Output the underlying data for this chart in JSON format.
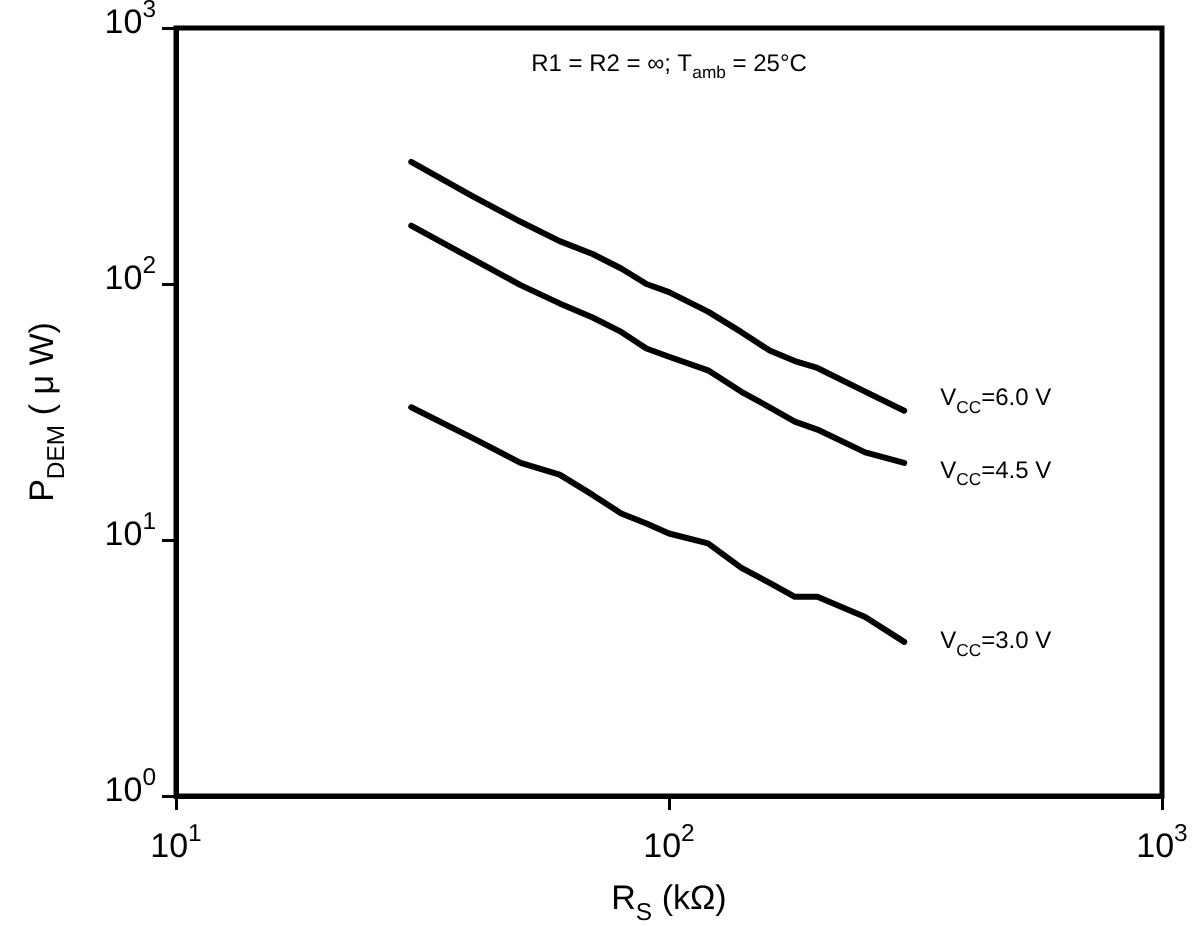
{
  "chart_data": {
    "type": "line",
    "xlabel": "R$_{S}$ (kΩ)",
    "ylabel": "P$_{DEM}$ ( μ W)",
    "annotations": [
      "R1 = R2 = ∞; T$_{amb}$ = 25°C"
    ],
    "x": [
      30,
      40,
      50,
      60,
      70,
      80,
      90,
      100,
      120,
      140,
      160,
      180,
      200,
      250,
      300
    ],
    "series": [
      {
        "name": "V$_{CC}$=6.0 V",
        "color": "#000000",
        "values": [
          300,
          220,
          175,
          147,
          131,
          115,
          100,
          93,
          78,
          65,
          55,
          50,
          47,
          38,
          32
        ]
      },
      {
        "name": "V$_{CC}$=4.5 V",
        "color": "#000000",
        "values": [
          169,
          125,
          99,
          84,
          74,
          65,
          56,
          52,
          46,
          38,
          33,
          29,
          27,
          22,
          20
        ]
      },
      {
        "name": "V$_{CC}$=3.0 V",
        "color": "#000000",
        "values": [
          33,
          25,
          20,
          18,
          15,
          12.7,
          11.6,
          10.6,
          9.7,
          7.8,
          6.8,
          6.0,
          6.0,
          5.0,
          4.0
        ]
      }
    ],
    "log": "xy",
    "xlim": [
      10,
      1000
    ],
    "ylim": [
      1,
      1000
    ],
    "xticks": [
      {
        "value": 10,
        "label": "10$^{1}$"
      },
      {
        "value": 100,
        "label": "10$^{2}$"
      },
      {
        "value": 1000,
        "label": "10$^{3}$"
      }
    ],
    "yticks": [
      {
        "value": 1,
        "label": "10$^{0}$"
      },
      {
        "value": 10,
        "label": "10$^{1}$"
      },
      {
        "value": 100,
        "label": "10$^{2}$"
      },
      {
        "value": 1000,
        "label": "10$^{3}$"
      }
    ],
    "grid": false,
    "legend": false,
    "marker": "none",
    "line_style": "solid"
  }
}
